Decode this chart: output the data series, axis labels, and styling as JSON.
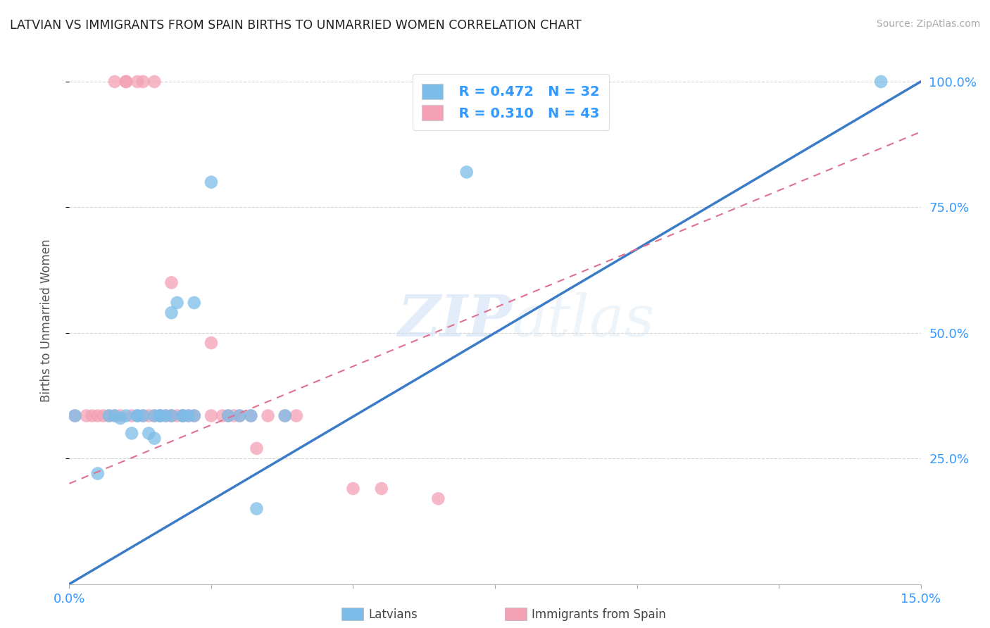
{
  "title": "LATVIAN VS IMMIGRANTS FROM SPAIN BIRTHS TO UNMARRIED WOMEN CORRELATION CHART",
  "source": "Source: ZipAtlas.com",
  "ylabel": "Births to Unmarried Women",
  "xlim": [
    0.0,
    0.15
  ],
  "ylim": [
    0.0,
    1.05
  ],
  "xtick_positions": [
    0.0,
    0.025,
    0.05,
    0.075,
    0.1,
    0.125,
    0.15
  ],
  "xtick_labels": [
    "0.0%",
    "",
    "",
    "",
    "",
    "",
    "15.0%"
  ],
  "ytick_positions": [
    0.25,
    0.5,
    0.75,
    1.0
  ],
  "ytick_labels": [
    "25.0%",
    "50.0%",
    "75.0%",
    "100.0%"
  ],
  "legend_labels": [
    "Latvians",
    "Immigrants from Spain"
  ],
  "legend_r": [
    "R = 0.472",
    "R = 0.310"
  ],
  "legend_n": [
    "N = 32",
    "N = 43"
  ],
  "blue_color": "#7bbde8",
  "pink_color": "#f4a0b5",
  "blue_line_color": "#3a7cc7",
  "pink_line_color": "#e07090",
  "watermark_zip": "ZIP",
  "watermark_atlas": "atlas",
  "background_color": "#ffffff",
  "grid_color": "#cccccc",
  "blue_scatter_x": [
    0.001,
    0.005,
    0.007,
    0.008,
    0.009,
    0.01,
    0.011,
    0.012,
    0.012,
    0.013,
    0.014,
    0.015,
    0.015,
    0.016,
    0.016,
    0.017,
    0.018,
    0.018,
    0.019,
    0.02,
    0.02,
    0.021,
    0.022,
    0.022,
    0.025,
    0.028,
    0.03,
    0.032,
    0.033,
    0.038,
    0.07,
    0.143
  ],
  "blue_scatter_y": [
    0.335,
    0.22,
    0.335,
    0.335,
    0.33,
    0.335,
    0.3,
    0.335,
    0.335,
    0.335,
    0.3,
    0.335,
    0.29,
    0.335,
    0.335,
    0.335,
    0.335,
    0.54,
    0.56,
    0.335,
    0.335,
    0.335,
    0.335,
    0.56,
    0.8,
    0.335,
    0.335,
    0.335,
    0.15,
    0.335,
    0.82,
    1.0
  ],
  "pink_scatter_x": [
    0.001,
    0.003,
    0.004,
    0.005,
    0.006,
    0.007,
    0.008,
    0.008,
    0.009,
    0.01,
    0.01,
    0.011,
    0.012,
    0.013,
    0.013,
    0.014,
    0.015,
    0.015,
    0.016,
    0.016,
    0.017,
    0.018,
    0.018,
    0.018,
    0.019,
    0.02,
    0.02,
    0.021,
    0.022,
    0.025,
    0.025,
    0.027,
    0.028,
    0.029,
    0.03,
    0.032,
    0.033,
    0.035,
    0.038,
    0.04,
    0.05,
    0.055,
    0.065
  ],
  "pink_scatter_y": [
    0.335,
    0.335,
    0.335,
    0.335,
    0.335,
    0.335,
    0.335,
    1.0,
    0.335,
    1.0,
    1.0,
    0.335,
    1.0,
    0.335,
    1.0,
    0.335,
    0.335,
    1.0,
    0.335,
    0.335,
    0.335,
    0.335,
    0.335,
    0.6,
    0.335,
    0.335,
    0.335,
    0.335,
    0.335,
    0.48,
    0.335,
    0.335,
    0.335,
    0.335,
    0.335,
    0.335,
    0.27,
    0.335,
    0.335,
    0.335,
    0.19,
    0.19,
    0.17
  ],
  "blue_line_x": [
    0.0,
    0.15
  ],
  "blue_line_y": [
    0.0,
    1.0
  ],
  "pink_line_x": [
    0.0,
    0.15
  ],
  "pink_line_y": [
    0.2,
    0.9
  ]
}
